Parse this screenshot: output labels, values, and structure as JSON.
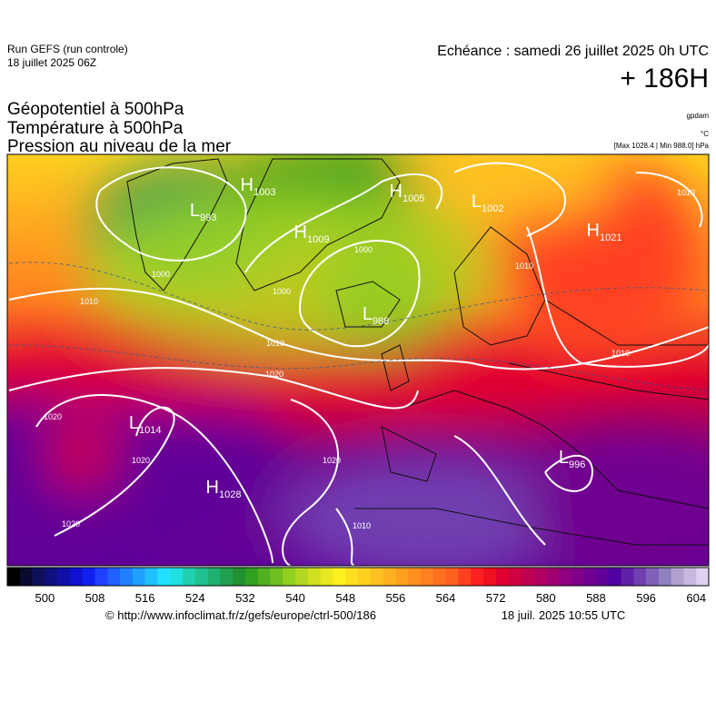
{
  "header": {
    "run": "Run GEFS (run controle)",
    "run_date": "18 juillet 2025 06Z",
    "valid": "Echéance : samedi 26 juillet 2025 0h UTC",
    "lead": "+ 186H",
    "fields": [
      "Géopotentiel à 500hPa",
      "Température à 500hPa",
      "Pression au niveau de la mer"
    ],
    "unit_geopotential": "gpdam",
    "unit_temperature": "°C",
    "pressure_range": "[Max 1028.4 | Min 988.0] hPa"
  },
  "systems": [
    {
      "letter": "H",
      "value": 1003
    },
    {
      "letter": "L",
      "value": 993
    },
    {
      "letter": "H",
      "value": 1009
    },
    {
      "letter": "H",
      "value": 1005
    },
    {
      "letter": "L",
      "value": 1002
    },
    {
      "letter": "H",
      "value": 1021
    },
    {
      "letter": "L",
      "value": 988
    },
    {
      "letter": "L",
      "value": 1014
    },
    {
      "letter": "H",
      "value": 1028
    },
    {
      "letter": "L",
      "value": 996
    }
  ],
  "isobar_labels": [
    1000,
    1000,
    1000,
    1010,
    1010,
    1020,
    1020,
    1020,
    1020,
    1020,
    1010,
    1010,
    1010,
    1010
  ],
  "colorbar": {
    "lim": [
      494,
      606
    ],
    "ticks": [
      500,
      508,
      516,
      524,
      532,
      540,
      548,
      556,
      564,
      572,
      580,
      588,
      596,
      604
    ],
    "colors": [
      "#000000",
      "#0a0a30",
      "#10105a",
      "#101080",
      "#1010a8",
      "#1010d0",
      "#1020f0",
      "#2040ff",
      "#2060ff",
      "#2080ff",
      "#20a0ff",
      "#20c0ff",
      "#20e0ff",
      "#20e0e0",
      "#20d0b0",
      "#20c090",
      "#20b070",
      "#20a050",
      "#209030",
      "#30a020",
      "#50b020",
      "#70c020",
      "#90d020",
      "#b0d820",
      "#d0e020",
      "#e8e820",
      "#fff020",
      "#ffe020",
      "#ffd020",
      "#ffc020",
      "#ffb020",
      "#ffa020",
      "#ff9020",
      "#ff8020",
      "#ff7020",
      "#ff6020",
      "#ff4020",
      "#ff2020",
      "#f01020",
      "#e00030",
      "#d00040",
      "#c00050",
      "#b00060",
      "#a00070",
      "#900080",
      "#800088",
      "#700090",
      "#600098",
      "#5000a0",
      "#6020a8",
      "#7040b0",
      "#8060b8",
      "#9080c0",
      "#b0a0d0",
      "#c8b8e0",
      "#e0d0f0"
    ]
  },
  "footer": {
    "source": "© http://www.infoclimat.fr/z/gefs/europe/ctrl-500/186",
    "generated": "18 juil. 2025 10:55 UTC"
  }
}
